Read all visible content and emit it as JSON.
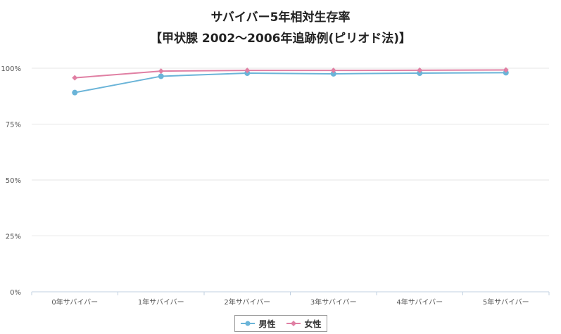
{
  "chart_data": {
    "type": "line",
    "title": "サバイバー5年相対生存率",
    "subtitle": "【甲状腺 2002～2006年追跡例(ピリオド法)】",
    "xlabel": "",
    "ylabel": "",
    "categories": [
      "0年サバイバー",
      "1年サバイバー",
      "2年サバイバー",
      "3年サバイバー",
      "4年サバイバー",
      "5年サバイバー"
    ],
    "yticks": [
      "0%",
      "25%",
      "50%",
      "75%",
      "100%"
    ],
    "ylim": [
      0,
      100
    ],
    "grid": true,
    "legend_position": "bottom",
    "series": [
      {
        "name": "男性",
        "color": "#6ab4d8",
        "marker": "circle",
        "values": [
          89.1,
          96.4,
          97.8,
          97.5,
          97.8,
          98.0
        ]
      },
      {
        "name": "女性",
        "color": "#e07fa3",
        "marker": "diamond",
        "values": [
          95.7,
          98.7,
          99.0,
          99.0,
          99.1,
          99.2
        ]
      }
    ]
  }
}
